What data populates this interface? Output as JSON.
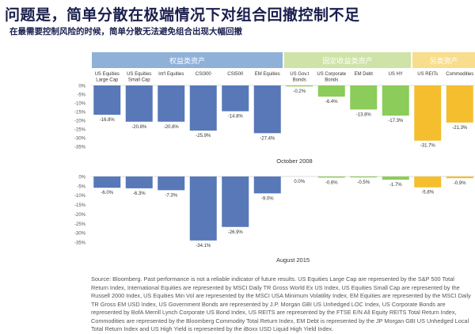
{
  "title": "问题是，简单分散在极端情况下对组合回撤控制不足",
  "subtitle": "在最需要控制风险的时候，简单分散无法避免组合出现大幅回撤",
  "groups": [
    {
      "label": "权益类资产",
      "color": "#8fb1d8",
      "text_color": "#ffffff",
      "count": 6
    },
    {
      "label": "固定收益类资产",
      "color": "#cfe3a8",
      "text_color": "#ffffff",
      "count": 4
    },
    {
      "label": "另类资产",
      "color": "#f8dd8c",
      "text_color": "#ffffff",
      "count": 2
    }
  ],
  "colors": {
    "equity": "#5878b8",
    "fixed_income": "#8ccc5a",
    "alternatives": "#f4be2e",
    "axis_text": "#555555",
    "grid": "#dddddd"
  },
  "source_note": "Source: Bloomberg. Past performance is not a reliable indicator of future results. US Equities Large Cap are represented by the S&P 500 Total Return Index, International Equities are represented by MSCI Daily TR Gross World Ex US Index, US Equities Small Cap are represented by the Russell 2000 Index, US Equities Min Vol are represented by the MSCI USA Minimum Volatility Index, EM Equities are represented by the MSCI Daily TR Gross EM USD Index, US Government Bonds are represented by J.P. Morgan GBI US Unhedged LOC Index, US Corporate Bonds are represented by BofA Merrill Lynch Corporate US Bond Index, US REITS are represented by the FTSE E/N All Equity REITS Total Return Index, Commodities are represented by the Bloomberg Commodity Total Return Index, EM Debt is represented by the JP Morgan GBI US Unhedged Local Total Return Index and US High Yield is represented by the iBoxx USD Liquid High Yield Index.",
  "chart_data": [
    {
      "type": "bar",
      "title": "October 2008",
      "categories": [
        "US Equities Large Cap",
        "US Equities Small Cap",
        "Int'l Equities",
        "CSI300",
        "CSI500",
        "EM Equities",
        "US Gov.t Bonds",
        "US Corporate Bonds",
        "EM Debt",
        "US HY",
        "US REITs",
        "Commodities"
      ],
      "category_groups": [
        "权益类资产",
        "权益类资产",
        "权益类资产",
        "权益类资产",
        "权益类资产",
        "权益类资产",
        "固定收益类资产",
        "固定收益类资产",
        "固定收益类资产",
        "固定收益类资产",
        "另类资产",
        "另类资产"
      ],
      "values": [
        -16.8,
        -20.8,
        -20.8,
        -25.9,
        -14.8,
        -27.4,
        -0.2,
        -6.4,
        -13.8,
        -17.3,
        -31.7,
        -21.3
      ],
      "value_labels": [
        "-16.8%",
        "-20.8%",
        "-20.8%",
        "-25.9%",
        "-14.8%",
        "-27.4%",
        "-0.2%",
        "-6.4%",
        "-13.8%",
        "-17.3%",
        "-31.7%",
        "-21.3%"
      ],
      "ylim": [
        -35,
        0
      ],
      "yticks": [
        "0%",
        "-5%",
        "-10%",
        "-15%",
        "-20%",
        "-25%",
        "-30%",
        "-35%"
      ]
    },
    {
      "type": "bar",
      "title": "August 2015",
      "categories": [
        "US Equities Large Cap",
        "US Equities Small Cap",
        "Int'l Equities",
        "CSI300",
        "CSI500",
        "EM Equities",
        "US Gov.t Bonds",
        "US Corporate Bonds",
        "EM Debt",
        "US HY",
        "US REITs",
        "Commodities"
      ],
      "category_groups": [
        "权益类资产",
        "权益类资产",
        "权益类资产",
        "权益类资产",
        "权益类资产",
        "权益类资产",
        "固定收益类资产",
        "固定收益类资产",
        "固定收益类资产",
        "固定收益类资产",
        "另类资产",
        "另类资产"
      ],
      "values": [
        -6.0,
        -6.3,
        -7.3,
        -34.1,
        -26.9,
        -9.0,
        0.0,
        -0.6,
        -0.5,
        -1.7,
        -5.8,
        -0.9
      ],
      "value_labels": [
        "-6.0%",
        "-6.3%",
        "-7.3%",
        "-34.1%",
        "-26.9%",
        "-9.0%",
        "0.0%",
        "-0.6%",
        "-0.5%",
        "-1.7%",
        "-5.8%",
        "-0.9%"
      ],
      "ylim": [
        -35,
        0
      ],
      "yticks": [
        "0%",
        "-5%",
        "-10%",
        "-15%",
        "-20%",
        "-25%",
        "-30%",
        "-35%"
      ]
    }
  ]
}
